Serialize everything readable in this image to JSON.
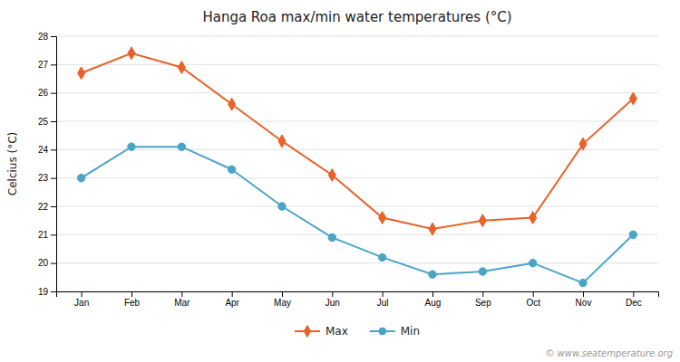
{
  "chart_data": {
    "type": "line",
    "title": "Hanga Roa max/min water temperatures (°C)",
    "ylabel": "Celcius (°C)",
    "categories": [
      "Jan",
      "Feb",
      "Mar",
      "Apr",
      "May",
      "Jun",
      "Jul",
      "Aug",
      "Sep",
      "Oct",
      "Nov",
      "Dec"
    ],
    "series": [
      {
        "name": "Max",
        "color": "#E8622A",
        "marker": "diamond",
        "values": [
          26.7,
          27.4,
          26.9,
          25.6,
          24.3,
          23.1,
          21.6,
          21.2,
          21.5,
          21.6,
          24.2,
          25.8
        ]
      },
      {
        "name": "Min",
        "color": "#4BA3C7",
        "marker": "circle",
        "values": [
          23.0,
          24.1,
          24.1,
          23.3,
          22.0,
          20.9,
          20.2,
          19.6,
          19.7,
          20.0,
          19.3,
          21.0
        ]
      }
    ],
    "ylim": [
      19,
      28
    ],
    "yticks": [
      19,
      20,
      21,
      22,
      23,
      24,
      25,
      26,
      27,
      28
    ],
    "grid": true,
    "legend": "bottom",
    "annotations": [
      "© www.seatemperature.org"
    ]
  }
}
